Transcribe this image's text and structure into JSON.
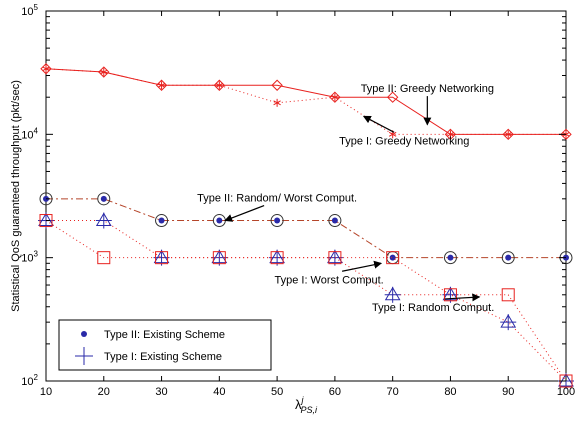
{
  "chart_data": {
    "type": "line",
    "xlabel": "λ^j_PS,i",
    "xlabel_base": "λ",
    "xlabel_sup": "j",
    "xlabel_sub": "PS,i",
    "ylabel": "Statistical QoS guaranteed throughput (pkt/sec)",
    "y_scale": "log",
    "xlim": [
      10,
      100
    ],
    "ylim": [
      100,
      100000
    ],
    "x_ticks": [
      "10",
      "20",
      "30",
      "40",
      "50",
      "60",
      "70",
      "80",
      "90",
      "100"
    ],
    "y_ticks": [
      {
        "value": 100,
        "base": "10",
        "exp": "2"
      },
      {
        "value": 1000,
        "base": "10",
        "exp": "3"
      },
      {
        "value": 10000,
        "base": "10",
        "exp": "4"
      },
      {
        "value": 100000,
        "base": "10",
        "exp": "5"
      }
    ],
    "grid": false,
    "legend_position": "bottom-left",
    "legend": [
      {
        "label": "Type II: Existing Scheme",
        "marker": "dot",
        "color": "#2a2aa8"
      },
      {
        "label": "Type I: Existing Scheme",
        "marker": "plus",
        "color": "#2a2aa8"
      }
    ],
    "x": [
      10,
      20,
      30,
      40,
      50,
      60,
      70,
      80,
      90,
      100
    ],
    "series": [
      {
        "key": "t2_greedy",
        "x": [
          10,
          20,
          30,
          40,
          50,
          60,
          70,
          80,
          90,
          100
        ],
        "values": [
          34000,
          32000,
          25000,
          25000,
          25000,
          20000,
          20000,
          10000,
          10000,
          10000
        ],
        "color": "#e8211e",
        "dash": "",
        "marker": "diamond",
        "marker_color": "#e8211e"
      },
      {
        "key": "t1_greedy",
        "x": [
          10,
          20,
          30,
          40,
          50,
          60,
          70,
          80,
          90,
          100
        ],
        "values": [
          34000,
          32000,
          25000,
          25000,
          18000,
          20000,
          10000,
          10000,
          10000,
          10000
        ],
        "color": "#e8211e",
        "dash": "1,3",
        "marker": "star",
        "marker_color": "#e8211e"
      },
      {
        "key": "t2_random_worst",
        "x": [
          10,
          20,
          30,
          40,
          50,
          60,
          70,
          80,
          90,
          100
        ],
        "values": [
          3000,
          3000,
          2000,
          2000,
          2000,
          2000,
          1000,
          1000,
          1000,
          1000
        ],
        "color": "#b5452a",
        "dash": "7,3,2,3",
        "marker": "circle",
        "marker_color": "#333333"
      },
      {
        "key": "t2_existing",
        "x": [
          10,
          20,
          30,
          40,
          50,
          60,
          70,
          80,
          90,
          100
        ],
        "values": [
          3000,
          3000,
          2000,
          2000,
          2000,
          2000,
          1000,
          1000,
          1000,
          1000
        ],
        "color": "#2a2aa8",
        "dash": "",
        "marker": "dot",
        "marker_color": "#2a2aa8",
        "no_line": true
      },
      {
        "key": "t1_worst",
        "x": [
          10,
          20,
          30,
          40,
          50,
          60,
          70,
          80,
          90,
          100
        ],
        "values": [
          2000,
          2000,
          1000,
          1000,
          1000,
          1000,
          500,
          500,
          300,
          100
        ],
        "color": "#e8211e",
        "dash": "1,3",
        "marker": "triangle",
        "marker_color": "#2a2aa8"
      },
      {
        "key": "t1_existing",
        "x": [
          10,
          20,
          30,
          40,
          50,
          60,
          70,
          80,
          90,
          100
        ],
        "values": [
          2000,
          2000,
          1000,
          1000,
          1000,
          1000,
          500,
          500,
          300,
          100
        ],
        "color": "#2a2aa8",
        "dash": "",
        "marker": "plus",
        "marker_color": "#2a2aa8",
        "no_line": true
      },
      {
        "key": "t1_random",
        "x": [
          10,
          20,
          30,
          40,
          50,
          60,
          70,
          80,
          90,
          100
        ],
        "values": [
          2000,
          1000,
          1000,
          1000,
          1000,
          1000,
          1000,
          500,
          500,
          100
        ],
        "color": "#e8211e",
        "dash": "1,3",
        "marker": "square",
        "marker_color": "#e8211e"
      }
    ],
    "annotations": [
      {
        "text": "Type II: Greedy Networking",
        "x": 76,
        "y": 22000,
        "arrow_to": [
          76,
          12000
        ],
        "anchor": "middle"
      },
      {
        "text": "Type I: Greedy Networking",
        "x": 72,
        "y": 8300,
        "arrow_to": [
          65,
          14000
        ],
        "anchor": "middle"
      },
      {
        "text": "Type II: Random/ Worst Comput.",
        "x": 50,
        "y": 2850,
        "arrow_to": [
          41,
          2000
        ],
        "anchor": "middle"
      },
      {
        "text": "Type I: Worst Comput.",
        "x": 59,
        "y": 620,
        "arrow_to": [
          68,
          900
        ],
        "anchor": "middle"
      },
      {
        "text": "Type I: Random Comput.",
        "x": 77,
        "y": 370,
        "arrow_to": [
          85,
          480
        ],
        "anchor": "middle"
      }
    ]
  }
}
